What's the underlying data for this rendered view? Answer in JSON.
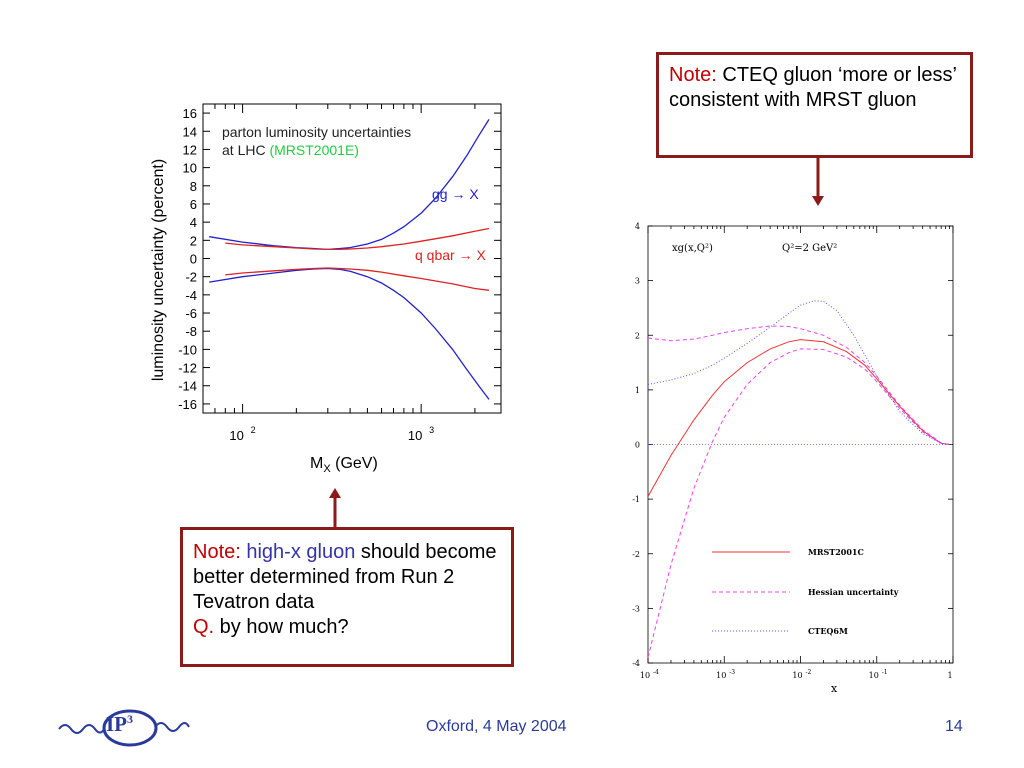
{
  "note_top": {
    "prefix": "Note:",
    "text": " CTEQ gluon ‘more or less’ consistent with MRST gluon"
  },
  "note_bottom": {
    "prefix": "Note:",
    "highlight": " high-x gluon",
    "text": " should become better determined from Run 2 Tevatron data",
    "q_prefix": "Q.",
    "q_text": " by how much?"
  },
  "footer": {
    "logo_text": "IP",
    "logo_sup": "3",
    "center": "Oxford, 4 May 2004",
    "page": "14"
  },
  "colors": {
    "note_border": "#8b1a1a",
    "note_red": "#c00000",
    "note_blue": "#3333aa",
    "footer_blue": "#2a3a9a"
  },
  "chart_data": [
    {
      "type": "line",
      "title_part1": "parton luminosity uncertainties",
      "title_part2": "at LHC",
      "title_highlight": "(MRST2001E)",
      "xlabel": "M",
      "xlabel_sub": "X",
      "xlabel_unit": " (GeV)",
      "ylabel": "luminosity uncertainty (percent)",
      "xscale": "log",
      "xlim": [
        60,
        2800
      ],
      "ylim": [
        -17,
        17
      ],
      "yticks": [
        16,
        14,
        12,
        10,
        8,
        6,
        4,
        2,
        0,
        -2,
        -4,
        -6,
        -8,
        -10,
        -12,
        -14,
        -16
      ],
      "xticks": [
        {
          "base": "10",
          "exp": "2",
          "value": 100
        },
        {
          "base": "10",
          "exp": "3",
          "value": 1000
        }
      ],
      "series": [
        {
          "name": "gg → X",
          "color": "#2222cc",
          "x": [
            65,
            100,
            150,
            200,
            250,
            300,
            350,
            400,
            500,
            600,
            700,
            800,
            1000,
            1200,
            1500,
            1800,
            2100,
            2400
          ],
          "upper": [
            2.4,
            1.8,
            1.4,
            1.2,
            1.1,
            1.0,
            1.1,
            1.2,
            1.6,
            2.1,
            2.8,
            3.5,
            5.0,
            6.6,
            9.0,
            11.3,
            13.5,
            15.3
          ],
          "lower": [
            -2.6,
            -2.0,
            -1.6,
            -1.3,
            -1.15,
            -1.1,
            -1.2,
            -1.4,
            -2.0,
            -2.7,
            -3.5,
            -4.3,
            -6.0,
            -7.7,
            -10.0,
            -12.2,
            -14.0,
            -15.5
          ]
        },
        {
          "name": "q qbar → X",
          "color": "#dd2222",
          "x": [
            80,
            100,
            150,
            200,
            250,
            300,
            350,
            400,
            500,
            600,
            800,
            1000,
            1500,
            2000,
            2400
          ],
          "upper": [
            1.7,
            1.5,
            1.3,
            1.15,
            1.05,
            1.0,
            1.0,
            1.05,
            1.15,
            1.3,
            1.6,
            1.9,
            2.5,
            3.0,
            3.3
          ],
          "lower": [
            -1.8,
            -1.6,
            -1.35,
            -1.2,
            -1.1,
            -1.05,
            -1.1,
            -1.15,
            -1.3,
            -1.5,
            -1.9,
            -2.2,
            -2.8,
            -3.3,
            -3.5
          ]
        }
      ],
      "legend_labels": [
        "gg → X",
        "q qbar → X"
      ]
    },
    {
      "type": "line",
      "title_left": "xg(x,Q²)",
      "title_right": "Q²=2 GeV²",
      "xlabel": "x",
      "xscale": "log",
      "xlim": [
        0.0001,
        1
      ],
      "ylim": [
        -4,
        4
      ],
      "yticks": [
        4,
        3,
        2,
        1,
        0,
        -1,
        -2,
        -3,
        -4
      ],
      "xticks": [
        {
          "base": "10",
          "exp": "-4",
          "value": 0.0001
        },
        {
          "base": "10",
          "exp": "-3",
          "value": 0.001
        },
        {
          "base": "10",
          "exp": "-2",
          "value": 0.01
        },
        {
          "base": "10",
          "exp": "-1",
          "value": 0.1
        },
        {
          "base": "1",
          "exp": "",
          "value": 1
        }
      ],
      "series": [
        {
          "name": "MRST2001C",
          "color": "#ee3333",
          "style": "solid",
          "x": [
            0.0001,
            0.0002,
            0.0004,
            0.0007,
            0.001,
            0.002,
            0.004,
            0.007,
            0.01,
            0.02,
            0.04,
            0.07,
            0.1,
            0.2,
            0.4,
            0.7,
            0.9
          ],
          "y": [
            -0.95,
            -0.2,
            0.45,
            0.9,
            1.15,
            1.5,
            1.75,
            1.88,
            1.92,
            1.88,
            1.7,
            1.45,
            1.2,
            0.7,
            0.25,
            0.02,
            0.0
          ]
        },
        {
          "name": "Hessian uncertainty",
          "color": "#ee44ee",
          "style": "dashed",
          "x": [
            0.0001,
            0.0002,
            0.0004,
            0.0007,
            0.001,
            0.002,
            0.004,
            0.007,
            0.01,
            0.02,
            0.04,
            0.07,
            0.1,
            0.2,
            0.4,
            0.7,
            0.9
          ],
          "y": [
            1.95,
            1.9,
            1.93,
            2.0,
            2.05,
            2.12,
            2.17,
            2.16,
            2.12,
            2.0,
            1.78,
            1.5,
            1.25,
            0.72,
            0.27,
            0.03,
            0.0
          ]
        },
        {
          "name": "Hessian uncertainty lower",
          "color": "#ee44ee",
          "style": "dashed",
          "x": [
            0.0001,
            0.0002,
            0.0004,
            0.0007,
            0.001,
            0.002,
            0.004,
            0.007,
            0.01,
            0.02,
            0.04,
            0.07,
            0.1,
            0.2,
            0.4,
            0.7,
            0.9
          ],
          "y": [
            -3.9,
            -2.2,
            -0.8,
            0.05,
            0.5,
            1.1,
            1.5,
            1.68,
            1.75,
            1.74,
            1.6,
            1.38,
            1.15,
            0.66,
            0.23,
            0.02,
            0.0
          ]
        },
        {
          "name": "CTEQ6M",
          "color": "#5555ff",
          "style": "dotted",
          "x": [
            0.0001,
            0.0002,
            0.0004,
            0.0007,
            0.001,
            0.002,
            0.004,
            0.007,
            0.01,
            0.015,
            0.02,
            0.03,
            0.05,
            0.1,
            0.2,
            0.4,
            0.7,
            0.9
          ],
          "y": [
            1.1,
            1.18,
            1.3,
            1.45,
            1.58,
            1.85,
            2.15,
            2.4,
            2.55,
            2.63,
            2.62,
            2.45,
            2.0,
            1.25,
            0.6,
            0.2,
            0.02,
            0.0
          ]
        }
      ],
      "legend": [
        {
          "label": "MRST2001C",
          "color": "#ee3333",
          "style": "solid"
        },
        {
          "label": "Hessian uncertainty",
          "color": "#ee44ee",
          "style": "dashed"
        },
        {
          "label": "CTEQ6M",
          "color": "#5555ff",
          "style": "dotted"
        }
      ],
      "legend_placement": "bottom-center"
    }
  ]
}
